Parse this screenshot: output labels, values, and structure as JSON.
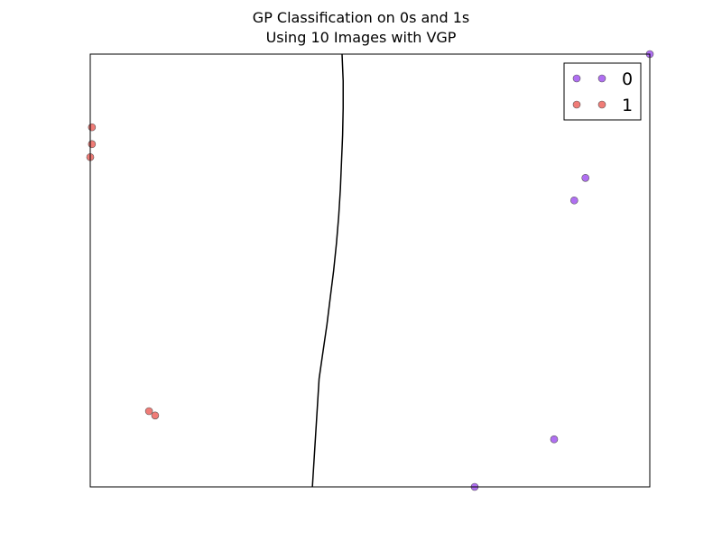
{
  "chart_data": {
    "type": "scatter",
    "title": "GP Classification on 0s and 1s",
    "subtitle": "Using 10 Images with VGP",
    "xlim": [
      0,
      1
    ],
    "ylim": [
      0,
      1
    ],
    "grid": false,
    "axis_ticks": false,
    "legend": {
      "position": "top-right",
      "markers_per_entry": 2
    },
    "series": [
      {
        "name": "0",
        "color": "#b06ff2",
        "edge_color": "#555555",
        "points": [
          {
            "x": 1.0,
            "y": 1.0
          },
          {
            "x": 0.885,
            "y": 0.714
          },
          {
            "x": 0.865,
            "y": 0.662
          },
          {
            "x": 0.829,
            "y": 0.11
          },
          {
            "x": 0.687,
            "y": 0.0
          }
        ]
      },
      {
        "name": "1",
        "color": "#f07c77",
        "edge_color": "#555555",
        "points": [
          {
            "x": 0.003,
            "y": 0.831
          },
          {
            "x": 0.003,
            "y": 0.792
          },
          {
            "x": 0.0,
            "y": 0.762
          },
          {
            "x": 0.105,
            "y": 0.175
          },
          {
            "x": 0.116,
            "y": 0.165
          }
        ]
      }
    ],
    "decision_boundary": {
      "color": "#000000",
      "points": [
        {
          "x": 0.45,
          "y": 1.0
        },
        {
          "x": 0.452,
          "y": 0.938
        },
        {
          "x": 0.452,
          "y": 0.875
        },
        {
          "x": 0.451,
          "y": 0.813
        },
        {
          "x": 0.449,
          "y": 0.75
        },
        {
          "x": 0.447,
          "y": 0.688
        },
        {
          "x": 0.444,
          "y": 0.625
        },
        {
          "x": 0.44,
          "y": 0.563
        },
        {
          "x": 0.435,
          "y": 0.5
        },
        {
          "x": 0.429,
          "y": 0.438
        },
        {
          "x": 0.423,
          "y": 0.375
        },
        {
          "x": 0.416,
          "y": 0.313
        },
        {
          "x": 0.409,
          "y": 0.25
        },
        {
          "x": 0.414,
          "y": 0.292
        },
        {
          "x": 0.397,
          "y": 0.0
        }
      ]
    }
  }
}
